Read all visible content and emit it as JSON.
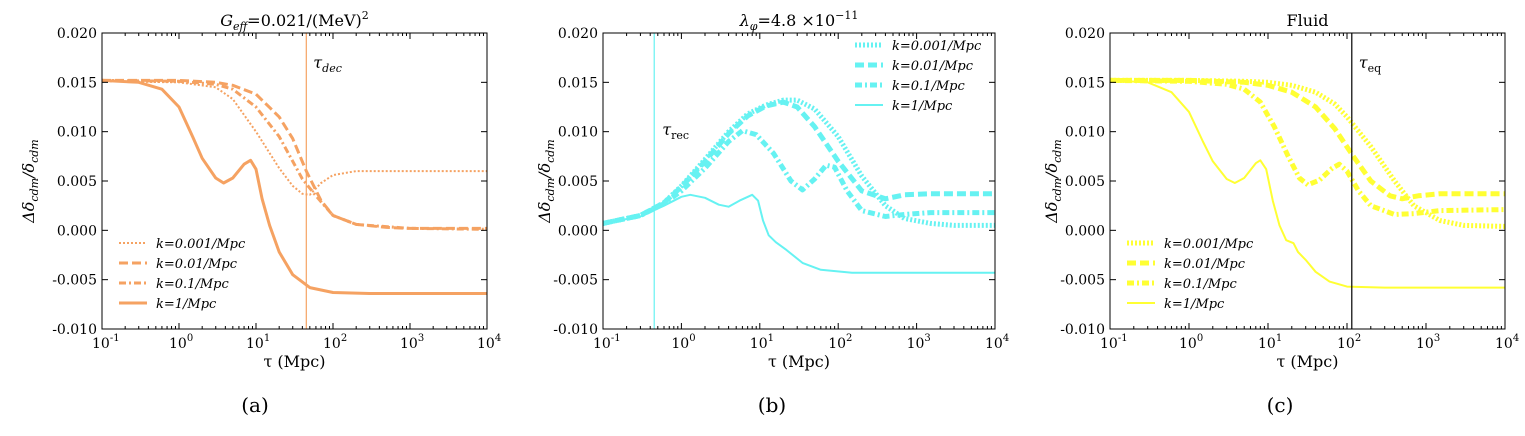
{
  "chart_data": [
    {
      "type": "line",
      "panel_label": "(a)",
      "title": "G_eff = 0.021/(MeV)^2",
      "title_parts": {
        "symbol": "G",
        "sub": "eff",
        "rhs": "=0.021/(MeV)",
        "sup": "2"
      },
      "xlabel": "τ (Mpc)",
      "ylabel": "Δδcdm/δcdm",
      "ylabel_parts": {
        "delta": "Δδ",
        "sub1": "cdm",
        "slash": "/δ",
        "sub2": "cdm"
      },
      "xscale": "log",
      "xlim": [
        0.1,
        10000
      ],
      "ylim": [
        -0.01,
        0.02
      ],
      "color": "#f5a262",
      "legend_loc": "lower-left",
      "vline": {
        "x": 45,
        "label": "τ",
        "sub": "dec",
        "color": "#f5a262"
      },
      "series": [
        {
          "name": "k=0.001/Mpc",
          "style": "dotted",
          "points": [
            [
              0.1,
              0.0151
            ],
            [
              1,
              0.015
            ],
            [
              3,
              0.0145
            ],
            [
              5,
              0.0133
            ],
            [
              10,
              0.01
            ],
            [
              20,
              0.0063
            ],
            [
              30,
              0.0045
            ],
            [
              40,
              0.0037
            ],
            [
              50,
              0.0036
            ],
            [
              70,
              0.0048
            ],
            [
              100,
              0.0056
            ],
            [
              200,
              0.006
            ],
            [
              1000,
              0.006
            ],
            [
              10000,
              0.006
            ]
          ]
        },
        {
          "name": "k=0.01/Mpc",
          "style": "dashed",
          "points": [
            [
              0.1,
              0.0152
            ],
            [
              1,
              0.0152
            ],
            [
              3,
              0.015
            ],
            [
              5,
              0.0147
            ],
            [
              10,
              0.0138
            ],
            [
              20,
              0.0115
            ],
            [
              30,
              0.0093
            ],
            [
              45,
              0.006
            ],
            [
              70,
              0.003
            ],
            [
              100,
              0.0015
            ],
            [
              200,
              0.0006
            ],
            [
              500,
              0.0003
            ],
            [
              1000,
              0.0002
            ],
            [
              10000,
              0.0002
            ]
          ]
        },
        {
          "name": "k=0.1/Mpc",
          "style": "dashdot",
          "points": [
            [
              0.1,
              0.0152
            ],
            [
              1,
              0.0151
            ],
            [
              3,
              0.0148
            ],
            [
              5,
              0.0143
            ],
            [
              10,
              0.0125
            ],
            [
              20,
              0.0095
            ],
            [
              40,
              0.0052
            ],
            [
              60,
              0.0035
            ],
            [
              100,
              0.0015
            ],
            [
              200,
              0.0006
            ],
            [
              1000,
              0.0002
            ],
            [
              10000,
              0.0001
            ]
          ]
        },
        {
          "name": "k=1/Mpc",
          "style": "solid",
          "points": [
            [
              0.1,
              0.0152
            ],
            [
              0.3,
              0.015
            ],
            [
              0.6,
              0.0143
            ],
            [
              1,
              0.0125
            ],
            [
              1.5,
              0.0095
            ],
            [
              2,
              0.0073
            ],
            [
              3,
              0.0053
            ],
            [
              3.8,
              0.0048
            ],
            [
              5,
              0.0053
            ],
            [
              7,
              0.0067
            ],
            [
              8.5,
              0.0071
            ],
            [
              10,
              0.0062
            ],
            [
              12,
              0.0032
            ],
            [
              15,
              0.0005
            ],
            [
              20,
              -0.0022
            ],
            [
              30,
              -0.0045
            ],
            [
              50,
              -0.0058
            ],
            [
              100,
              -0.0063
            ],
            [
              300,
              -0.0064
            ],
            [
              10000,
              -0.0064
            ]
          ]
        }
      ]
    },
    {
      "type": "line",
      "panel_label": "(b)",
      "title": "λ_φ = 4.8 ×10^-11",
      "title_parts": {
        "symbol": "λ",
        "sub": "φ",
        "rhs": "=4.8 ×10",
        "sup": "−11"
      },
      "xlabel": "τ (Mpc)",
      "ylabel": "Δδcdm/δcdm",
      "ylabel_parts": {
        "delta": "Δδ",
        "sub1": "cdm",
        "slash": "/δ",
        "sub2": "cdm"
      },
      "xscale": "log",
      "xlim": [
        0.1,
        10000
      ],
      "ylim": [
        -0.01,
        0.02
      ],
      "color": "#66f2f2",
      "legend_loc": "upper-right",
      "vline": {
        "x": 0.45,
        "label": "τ",
        "sub": "rec",
        "color": "#66f2f2"
      },
      "series": [
        {
          "name": "k=0.001/Mpc",
          "style": "dotted",
          "points": [
            [
              0.1,
              0.0007
            ],
            [
              0.3,
              0.0015
            ],
            [
              0.6,
              0.0028
            ],
            [
              1,
              0.0045
            ],
            [
              2,
              0.0072
            ],
            [
              4,
              0.01
            ],
            [
              7,
              0.0118
            ],
            [
              12,
              0.0127
            ],
            [
              20,
              0.0132
            ],
            [
              30,
              0.0132
            ],
            [
              50,
              0.0123
            ],
            [
              100,
              0.0095
            ],
            [
              200,
              0.0055
            ],
            [
              400,
              0.0025
            ],
            [
              700,
              0.0012
            ],
            [
              1500,
              0.0007
            ],
            [
              3000,
              0.0005
            ],
            [
              10000,
              0.0005
            ]
          ]
        },
        {
          "name": "k=0.01/Mpc",
          "style": "dashed",
          "points": [
            [
              0.1,
              0.0007
            ],
            [
              0.3,
              0.0015
            ],
            [
              0.6,
              0.0028
            ],
            [
              1,
              0.0044
            ],
            [
              2,
              0.007
            ],
            [
              4,
              0.0098
            ],
            [
              7,
              0.0116
            ],
            [
              12,
              0.0126
            ],
            [
              20,
              0.013
            ],
            [
              30,
              0.0125
            ],
            [
              50,
              0.0105
            ],
            [
              100,
              0.007
            ],
            [
              200,
              0.004
            ],
            [
              400,
              0.0032
            ],
            [
              700,
              0.0036
            ],
            [
              1500,
              0.0037
            ],
            [
              10000,
              0.0037
            ]
          ]
        },
        {
          "name": "k=0.1/Mpc",
          "style": "dashdot",
          "points": [
            [
              0.1,
              0.0007
            ],
            [
              0.3,
              0.0015
            ],
            [
              0.6,
              0.0027
            ],
            [
              1,
              0.004
            ],
            [
              2,
              0.0063
            ],
            [
              4,
              0.009
            ],
            [
              6,
              0.0101
            ],
            [
              9,
              0.0097
            ],
            [
              15,
              0.0078
            ],
            [
              25,
              0.005
            ],
            [
              35,
              0.0041
            ],
            [
              50,
              0.0052
            ],
            [
              70,
              0.0066
            ],
            [
              90,
              0.0064
            ],
            [
              130,
              0.004
            ],
            [
              200,
              0.002
            ],
            [
              400,
              0.0014
            ],
            [
              700,
              0.0016
            ],
            [
              1500,
              0.0018
            ],
            [
              10000,
              0.0018
            ]
          ]
        },
        {
          "name": "k=1/Mpc",
          "style": "solid",
          "points": [
            [
              0.1,
              0.0007
            ],
            [
              0.3,
              0.0014
            ],
            [
              0.6,
              0.0025
            ],
            [
              1,
              0.0034
            ],
            [
              1.3,
              0.0036
            ],
            [
              2,
              0.0033
            ],
            [
              3,
              0.0026
            ],
            [
              4,
              0.0024
            ],
            [
              5.5,
              0.003
            ],
            [
              8,
              0.0036
            ],
            [
              9.5,
              0.003
            ],
            [
              11,
              0.001
            ],
            [
              13,
              -0.0005
            ],
            [
              16,
              -0.0012
            ],
            [
              22,
              -0.002
            ],
            [
              35,
              -0.0033
            ],
            [
              60,
              -0.004
            ],
            [
              150,
              -0.0043
            ],
            [
              1000,
              -0.0043
            ],
            [
              10000,
              -0.0043
            ]
          ]
        }
      ]
    },
    {
      "type": "line",
      "panel_label": "(c)",
      "title": "Fluid",
      "xlabel": "τ (Mpc)",
      "ylabel": "Δδcdm/δcdm",
      "ylabel_parts": {
        "delta": "Δδ",
        "sub1": "cdm",
        "slash": "/δ",
        "sub2": "cdm"
      },
      "xscale": "log",
      "xlim": [
        0.1,
        10000
      ],
      "ylim": [
        -0.01,
        0.02
      ],
      "color": "#ffff33",
      "legend_loc": "lower-left",
      "vline": {
        "x": 115,
        "label": "τ",
        "sub": "eq",
        "color": "#000000"
      },
      "series": [
        {
          "name": "k=0.001/Mpc",
          "style": "dotted",
          "points": [
            [
              0.1,
              0.0152
            ],
            [
              1,
              0.0152
            ],
            [
              5,
              0.0151
            ],
            [
              10,
              0.015
            ],
            [
              20,
              0.0147
            ],
            [
              40,
              0.014
            ],
            [
              70,
              0.0128
            ],
            [
              100,
              0.0115
            ],
            [
              200,
              0.0085
            ],
            [
              400,
              0.005
            ],
            [
              700,
              0.0025
            ],
            [
              1500,
              0.001
            ],
            [
              3000,
              0.0005
            ],
            [
              10000,
              0.0004
            ]
          ]
        },
        {
          "name": "k=0.01/Mpc",
          "style": "dashed",
          "points": [
            [
              0.1,
              0.0152
            ],
            [
              1,
              0.0152
            ],
            [
              5,
              0.015
            ],
            [
              10,
              0.0147
            ],
            [
              20,
              0.014
            ],
            [
              40,
              0.0125
            ],
            [
              70,
              0.0103
            ],
            [
              120,
              0.0075
            ],
            [
              200,
              0.005
            ],
            [
              350,
              0.0035
            ],
            [
              500,
              0.0032
            ],
            [
              800,
              0.0035
            ],
            [
              1500,
              0.0037
            ],
            [
              10000,
              0.0037
            ]
          ]
        },
        {
          "name": "k=0.1/Mpc",
          "style": "dashdot",
          "points": [
            [
              0.1,
              0.0152
            ],
            [
              1,
              0.0151
            ],
            [
              3,
              0.0148
            ],
            [
              5,
              0.0143
            ],
            [
              8,
              0.013
            ],
            [
              12,
              0.0105
            ],
            [
              18,
              0.0075
            ],
            [
              25,
              0.0053
            ],
            [
              32,
              0.0046
            ],
            [
              45,
              0.0051
            ],
            [
              65,
              0.0063
            ],
            [
              80,
              0.0067
            ],
            [
              100,
              0.006
            ],
            [
              140,
              0.004
            ],
            [
              200,
              0.0025
            ],
            [
              400,
              0.0016
            ],
            [
              700,
              0.0017
            ],
            [
              1500,
              0.002
            ],
            [
              10000,
              0.0021
            ]
          ]
        },
        {
          "name": "k=1/Mpc",
          "style": "solid",
          "points": [
            [
              0.1,
              0.0152
            ],
            [
              0.3,
              0.015
            ],
            [
              0.6,
              0.014
            ],
            [
              1,
              0.012
            ],
            [
              1.5,
              0.009
            ],
            [
              2,
              0.007
            ],
            [
              3,
              0.0052
            ],
            [
              3.8,
              0.0048
            ],
            [
              5,
              0.0053
            ],
            [
              7,
              0.0068
            ],
            [
              8,
              0.0071
            ],
            [
              9.5,
              0.0062
            ],
            [
              11.5,
              0.003
            ],
            [
              14,
              0.0005
            ],
            [
              17,
              -0.001
            ],
            [
              21,
              -0.0013
            ],
            [
              24,
              -0.0022
            ],
            [
              30,
              -0.003
            ],
            [
              40,
              -0.0042
            ],
            [
              60,
              -0.0052
            ],
            [
              100,
              -0.0057
            ],
            [
              300,
              -0.0058
            ],
            [
              10000,
              -0.0058
            ]
          ]
        }
      ]
    }
  ]
}
